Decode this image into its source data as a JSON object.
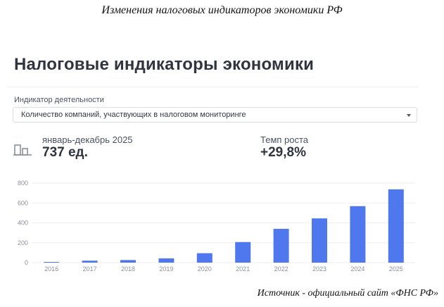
{
  "captions": {
    "top": "Изменения налоговых индикаторов экономики РФ",
    "bottom": "Источник - официальный сайт «ФНС РФ»"
  },
  "widget": {
    "title": "Налоговые индикаторы экономики",
    "field_label": "Индикатор деятельности",
    "select_value": "Количество компаний, участвующих в налоговом мониторинге",
    "period": "январь-декабрь 2025",
    "value": "737 ед.",
    "growth_label": "Темп роста",
    "growth_value": "+29,8%",
    "icon": "building-icon"
  },
  "colors": {
    "bar": "#4f78ef",
    "grid": "#eceef2",
    "axis_text": "#8a909a"
  },
  "chart_data": {
    "type": "bar",
    "categories": [
      "2016",
      "2017",
      "2018",
      "2019",
      "2020",
      "2021",
      "2022",
      "2023",
      "2024",
      "2025"
    ],
    "values": [
      7,
      20,
      26,
      43,
      95,
      207,
      340,
      445,
      568,
      737
    ],
    "ylim": [
      0,
      800
    ],
    "yticks": [
      0,
      200,
      400,
      600,
      800
    ],
    "grid": true,
    "title": "",
    "xlabel": "",
    "ylabel": ""
  }
}
